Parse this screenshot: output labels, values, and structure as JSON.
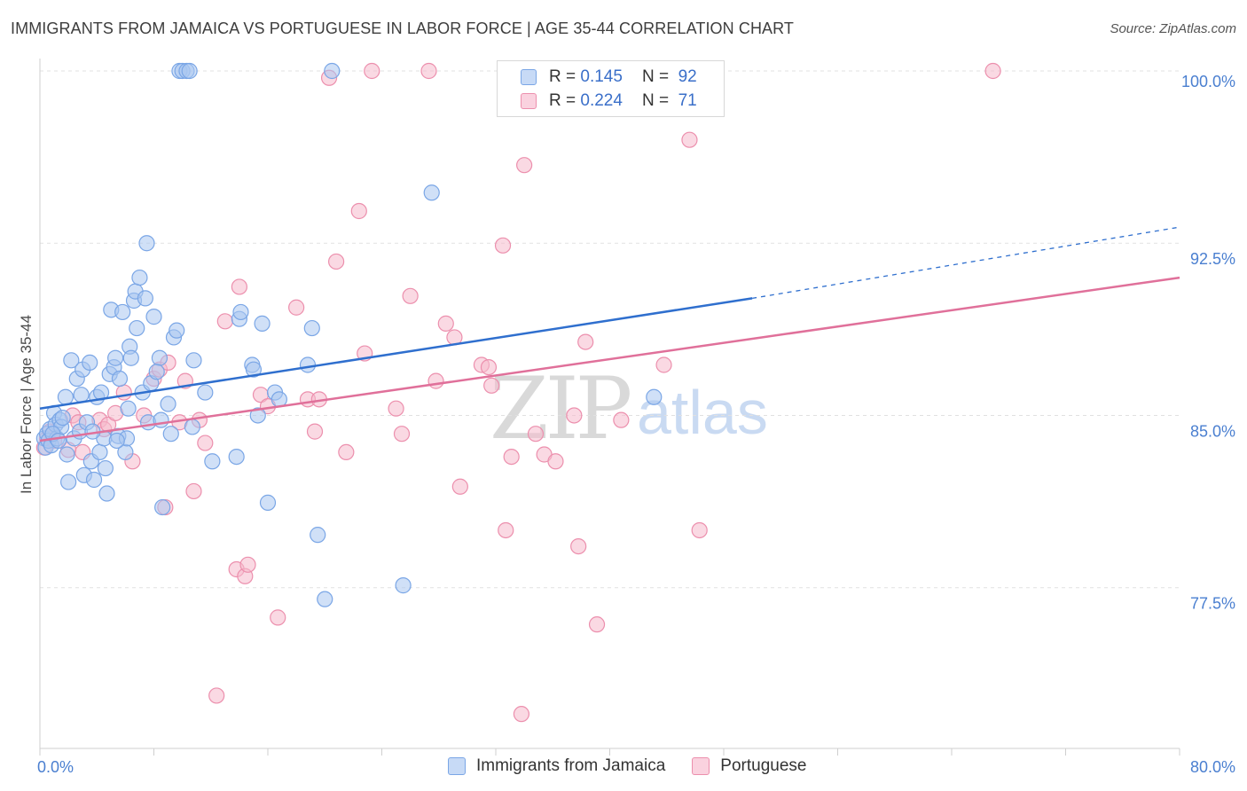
{
  "header": {
    "title": "IMMIGRANTS FROM JAMAICA VS PORTUGUESE IN LABOR FORCE | AGE 35-44 CORRELATION CHART",
    "source": "Source: ZipAtlas.com"
  },
  "watermark": {
    "zip": "ZIP",
    "atlas": "atlas"
  },
  "legend_top": {
    "rows": [
      {
        "r_label": "R =",
        "r_value": "0.145",
        "n_label": "N =",
        "n_value": "92",
        "color": "#a9c6f0"
      },
      {
        "r_label": "R =",
        "r_value": "0.224",
        "n_label": "N =",
        "n_value": "71",
        "color": "#f6b9cc"
      }
    ]
  },
  "legend_bottom": {
    "items": [
      {
        "label": "Immigrants from Jamaica",
        "color": "#a9c6f0"
      },
      {
        "label": "Portuguese",
        "color": "#f6b9cc"
      }
    ]
  },
  "chart_data": {
    "type": "scatter",
    "title": "IMMIGRANTS FROM JAMAICA VS PORTUGUESE IN LABOR FORCE | AGE 35-44 CORRELATION CHART",
    "ylabel": "In Labor Force | Age 35-44",
    "xlim": [
      0,
      80
    ],
    "ylim": [
      70.5,
      100.5
    ],
    "x_tick_labels": [
      {
        "value": 0,
        "label": "0.0%"
      },
      {
        "value": 80,
        "label": "80.0%"
      }
    ],
    "y_tick_labels": [
      {
        "value": 77.5,
        "label": "77.5%"
      },
      {
        "value": 85.0,
        "label": "85.0%"
      },
      {
        "value": 92.5,
        "label": "92.5%"
      },
      {
        "value": 100.0,
        "label": "100.0%"
      }
    ],
    "grid": "horizontal dashed",
    "series": [
      {
        "name": "Immigrants from Jamaica",
        "color": "#7aa6e6",
        "fill": "#a9c6f0",
        "points": [
          [
            0.3,
            84.0
          ],
          [
            0.4,
            83.6
          ],
          [
            0.5,
            84.2
          ],
          [
            0.6,
            83.9
          ],
          [
            0.7,
            84.4
          ],
          [
            0.8,
            83.7
          ],
          [
            1.0,
            85.1
          ],
          [
            1.1,
            84.6
          ],
          [
            1.2,
            84.0
          ],
          [
            1.4,
            84.8
          ],
          [
            1.5,
            84.5
          ],
          [
            1.6,
            84.9
          ],
          [
            1.8,
            85.8
          ],
          [
            1.9,
            83.3
          ],
          [
            2.0,
            82.1
          ],
          [
            2.2,
            87.4
          ],
          [
            2.4,
            84.0
          ],
          [
            2.6,
            86.6
          ],
          [
            2.8,
            84.3
          ],
          [
            3.0,
            87.0
          ],
          [
            3.1,
            82.4
          ],
          [
            3.3,
            84.7
          ],
          [
            3.5,
            87.3
          ],
          [
            3.6,
            83.0
          ],
          [
            3.8,
            82.2
          ],
          [
            4.0,
            85.8
          ],
          [
            4.2,
            83.4
          ],
          [
            4.3,
            86.0
          ],
          [
            4.5,
            84.0
          ],
          [
            4.6,
            82.7
          ],
          [
            4.7,
            81.6
          ],
          [
            4.9,
            86.8
          ],
          [
            5.0,
            89.6
          ],
          [
            5.2,
            87.1
          ],
          [
            5.3,
            87.5
          ],
          [
            5.5,
            84.1
          ],
          [
            5.6,
            86.6
          ],
          [
            5.8,
            89.5
          ],
          [
            6.0,
            83.4
          ],
          [
            6.1,
            84.0
          ],
          [
            6.3,
            88.0
          ],
          [
            6.4,
            87.5
          ],
          [
            6.6,
            90.0
          ],
          [
            6.7,
            90.4
          ],
          [
            6.8,
            88.8
          ],
          [
            7.0,
            91.0
          ],
          [
            7.2,
            86.0
          ],
          [
            7.4,
            90.1
          ],
          [
            7.5,
            92.5
          ],
          [
            7.6,
            84.7
          ],
          [
            7.8,
            86.4
          ],
          [
            8.0,
            89.3
          ],
          [
            8.4,
            87.5
          ],
          [
            8.5,
            84.8
          ],
          [
            8.6,
            81.0
          ],
          [
            9.0,
            85.5
          ],
          [
            9.4,
            88.4
          ],
          [
            9.6,
            88.7
          ],
          [
            9.8,
            100.0
          ],
          [
            10.0,
            100.0
          ],
          [
            10.3,
            100.0
          ],
          [
            10.5,
            100.0
          ],
          [
            10.7,
            84.5
          ],
          [
            10.8,
            87.4
          ],
          [
            11.6,
            86.0
          ],
          [
            12.1,
            83.0
          ],
          [
            13.8,
            83.2
          ],
          [
            14.0,
            89.2
          ],
          [
            14.1,
            89.5
          ],
          [
            14.9,
            87.2
          ],
          [
            15.0,
            87.0
          ],
          [
            15.3,
            85.0
          ],
          [
            15.6,
            89.0
          ],
          [
            16.0,
            81.2
          ],
          [
            16.5,
            86.0
          ],
          [
            16.8,
            85.7
          ],
          [
            18.8,
            87.2
          ],
          [
            19.1,
            88.8
          ],
          [
            19.5,
            79.8
          ],
          [
            20.0,
            77.0
          ],
          [
            20.5,
            100.0
          ],
          [
            25.5,
            77.6
          ],
          [
            27.5,
            94.7
          ],
          [
            43.1,
            85.8
          ],
          [
            0.9,
            84.2
          ],
          [
            1.3,
            83.9
          ],
          [
            2.9,
            85.9
          ],
          [
            3.7,
            84.3
          ],
          [
            5.4,
            83.9
          ],
          [
            6.2,
            85.3
          ],
          [
            8.2,
            86.9
          ],
          [
            9.2,
            84.2
          ]
        ]
      },
      {
        "name": "Portuguese",
        "color": "#ec8fad",
        "fill": "#f6b9cc",
        "points": [
          [
            0.3,
            83.6
          ],
          [
            0.5,
            84.0
          ],
          [
            0.7,
            84.3
          ],
          [
            1.0,
            83.9
          ],
          [
            2.0,
            83.5
          ],
          [
            2.3,
            85.0
          ],
          [
            2.7,
            84.7
          ],
          [
            3.0,
            83.4
          ],
          [
            4.2,
            84.8
          ],
          [
            4.5,
            84.4
          ],
          [
            4.8,
            84.6
          ],
          [
            5.3,
            85.1
          ],
          [
            5.9,
            86.0
          ],
          [
            6.5,
            83.0
          ],
          [
            7.3,
            85.0
          ],
          [
            8.0,
            86.6
          ],
          [
            8.4,
            87.0
          ],
          [
            8.8,
            81.0
          ],
          [
            9.0,
            87.3
          ],
          [
            9.8,
            84.7
          ],
          [
            10.2,
            86.5
          ],
          [
            10.8,
            81.7
          ],
          [
            11.2,
            84.8
          ],
          [
            11.6,
            83.8
          ],
          [
            12.4,
            72.8
          ],
          [
            13.0,
            89.1
          ],
          [
            13.8,
            78.3
          ],
          [
            14.0,
            90.6
          ],
          [
            14.4,
            78.0
          ],
          [
            14.6,
            78.5
          ],
          [
            15.5,
            85.9
          ],
          [
            16.0,
            85.4
          ],
          [
            16.7,
            76.2
          ],
          [
            18.0,
            89.7
          ],
          [
            18.8,
            85.7
          ],
          [
            19.3,
            84.3
          ],
          [
            19.6,
            85.7
          ],
          [
            20.3,
            99.7
          ],
          [
            20.8,
            91.7
          ],
          [
            21.5,
            83.4
          ],
          [
            22.4,
            93.9
          ],
          [
            22.8,
            87.7
          ],
          [
            23.3,
            100.0
          ],
          [
            25.0,
            85.3
          ],
          [
            25.4,
            84.2
          ],
          [
            26.0,
            90.2
          ],
          [
            27.3,
            100.0
          ],
          [
            27.8,
            86.5
          ],
          [
            28.5,
            89.0
          ],
          [
            29.1,
            88.4
          ],
          [
            29.5,
            81.9
          ],
          [
            31.0,
            87.2
          ],
          [
            31.5,
            87.1
          ],
          [
            31.7,
            86.3
          ],
          [
            32.5,
            92.4
          ],
          [
            32.7,
            80.0
          ],
          [
            34.0,
            95.9
          ],
          [
            34.8,
            84.2
          ],
          [
            35.4,
            83.3
          ],
          [
            36.2,
            83.0
          ],
          [
            37.5,
            85.0
          ],
          [
            37.8,
            79.3
          ],
          [
            38.3,
            88.2
          ],
          [
            39.1,
            75.9
          ],
          [
            40.8,
            84.8
          ],
          [
            43.8,
            87.2
          ],
          [
            45.6,
            97.0
          ],
          [
            46.3,
            80.0
          ],
          [
            66.9,
            100.0
          ],
          [
            33.8,
            72.0
          ],
          [
            33.1,
            83.2
          ]
        ]
      }
    ],
    "trend_lines": [
      {
        "series": "Immigrants from Jamaica",
        "x0": 0,
        "y0": 85.3,
        "x1": 50,
        "y1": 90.1,
        "dashed_x1": 80,
        "dashed_y1": 93.2,
        "color": "#2f6fce"
      },
      {
        "series": "Portuguese",
        "x0": 0,
        "y0": 83.9,
        "x1": 80,
        "y1": 91.0,
        "color": "#e0709a"
      }
    ]
  }
}
